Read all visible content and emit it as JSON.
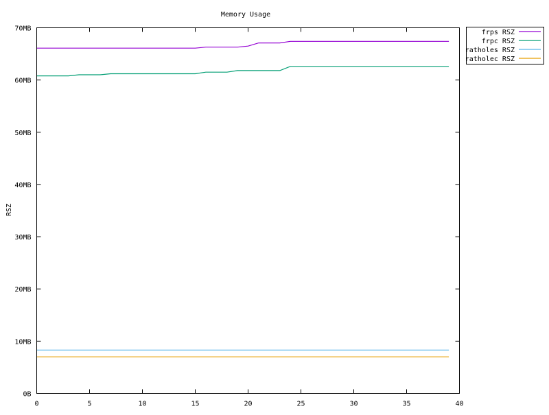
{
  "chart_data": {
    "type": "line",
    "title": "Memory Usage",
    "xlabel": "",
    "ylabel": "RSZ",
    "xlim": [
      0,
      40
    ],
    "ylim": [
      0,
      70
    ],
    "x_ticks": [
      0,
      5,
      10,
      15,
      20,
      25,
      30,
      35,
      40
    ],
    "y_ticks": [
      {
        "value": 0,
        "label": "0B"
      },
      {
        "value": 10,
        "label": "10MB"
      },
      {
        "value": 20,
        "label": "20MB"
      },
      {
        "value": 30,
        "label": "30MB"
      },
      {
        "value": 40,
        "label": "40MB"
      },
      {
        "value": 50,
        "label": "50MB"
      },
      {
        "value": 60,
        "label": "60MB"
      },
      {
        "value": 70,
        "label": "70MB"
      }
    ],
    "y_unit": "MB",
    "grid": false,
    "legend_placement": "outside-top-right",
    "x": [
      0,
      1,
      2,
      3,
      4,
      5,
      6,
      7,
      8,
      9,
      10,
      11,
      12,
      13,
      14,
      15,
      16,
      17,
      18,
      19,
      20,
      21,
      22,
      23,
      24,
      25,
      26,
      27,
      28,
      29,
      30,
      31,
      32,
      33,
      34,
      35,
      36,
      37,
      38,
      39
    ],
    "series": [
      {
        "name": "frps RSZ",
        "color": "#9400d3",
        "values": [
          66.1,
          66.1,
          66.1,
          66.1,
          66.1,
          66.1,
          66.1,
          66.1,
          66.1,
          66.1,
          66.1,
          66.1,
          66.1,
          66.1,
          66.1,
          66.1,
          66.3,
          66.3,
          66.3,
          66.3,
          66.5,
          67.1,
          67.1,
          67.1,
          67.4,
          67.4,
          67.4,
          67.4,
          67.4,
          67.4,
          67.4,
          67.4,
          67.4,
          67.4,
          67.4,
          67.4,
          67.4,
          67.4,
          67.4,
          67.4
        ]
      },
      {
        "name": "frpc RSZ",
        "color": "#009e73",
        "values": [
          60.8,
          60.8,
          60.8,
          60.8,
          61.0,
          61.0,
          61.0,
          61.2,
          61.2,
          61.2,
          61.2,
          61.2,
          61.2,
          61.2,
          61.2,
          61.2,
          61.5,
          61.5,
          61.5,
          61.8,
          61.8,
          61.8,
          61.8,
          61.8,
          62.6,
          62.6,
          62.6,
          62.6,
          62.6,
          62.6,
          62.6,
          62.6,
          62.6,
          62.6,
          62.6,
          62.6,
          62.6,
          62.6,
          62.6,
          62.6
        ]
      },
      {
        "name": "ratholes RSZ",
        "color": "#56b4e9",
        "values": [
          8.3,
          8.3,
          8.3,
          8.3,
          8.3,
          8.3,
          8.3,
          8.3,
          8.3,
          8.3,
          8.3,
          8.3,
          8.3,
          8.3,
          8.3,
          8.3,
          8.3,
          8.3,
          8.3,
          8.3,
          8.3,
          8.3,
          8.3,
          8.3,
          8.3,
          8.3,
          8.3,
          8.3,
          8.3,
          8.3,
          8.3,
          8.3,
          8.3,
          8.3,
          8.3,
          8.3,
          8.3,
          8.3,
          8.3,
          8.3
        ]
      },
      {
        "name": "ratholec RSZ",
        "color": "#e69f00",
        "values": [
          7.0,
          7.0,
          7.0,
          7.0,
          7.0,
          7.0,
          7.0,
          7.0,
          7.0,
          7.0,
          7.0,
          7.0,
          7.0,
          7.0,
          7.0,
          7.0,
          7.0,
          7.0,
          7.0,
          7.0,
          7.0,
          7.0,
          7.0,
          7.0,
          7.0,
          7.0,
          7.0,
          7.0,
          7.0,
          7.0,
          7.0,
          7.0,
          7.0,
          7.0,
          7.0,
          7.0,
          7.0,
          7.0,
          7.0,
          7.0
        ]
      }
    ]
  }
}
